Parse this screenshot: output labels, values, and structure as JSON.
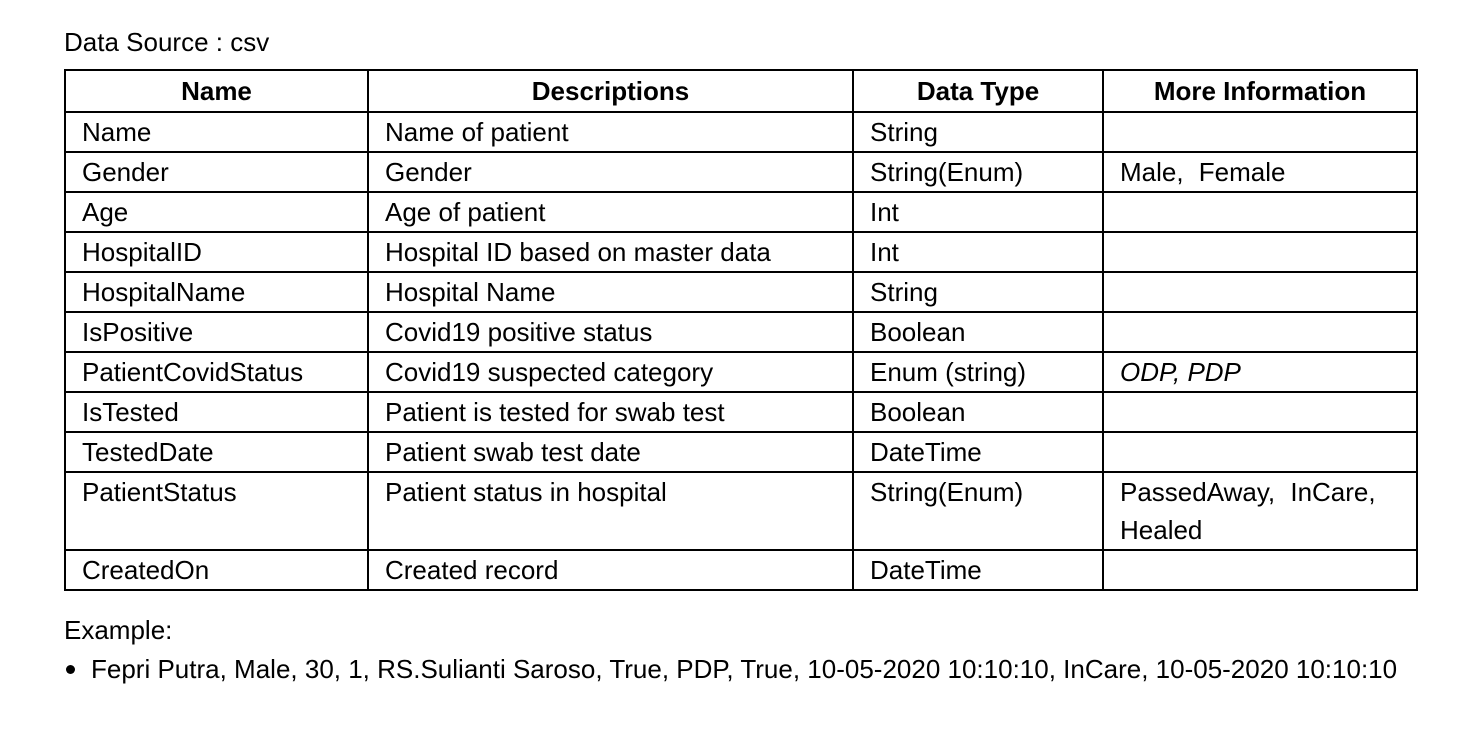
{
  "data_source": "Data Source : csv",
  "table": {
    "headers": [
      "Name",
      "Descriptions",
      "Data Type",
      "More Information"
    ],
    "rows": [
      {
        "name": "Name",
        "description": "Name of patient",
        "type": "String",
        "more": ""
      },
      {
        "name": "Gender",
        "description": "Gender",
        "type": "String(Enum)",
        "more": "Male, Female"
      },
      {
        "name": "Age",
        "description": "Age of patient",
        "type": "Int",
        "more": ""
      },
      {
        "name": "HospitalID",
        "description": "Hospital ID based on master data",
        "type": "Int",
        "more": ""
      },
      {
        "name": "HospitalName",
        "description": "Hospital Name",
        "type": "String",
        "more": ""
      },
      {
        "name": "IsPositive",
        "description": "Covid19 positive status",
        "type": "Boolean",
        "more": ""
      },
      {
        "name": "PatientCovidStatus",
        "description": "Covid19 suspected category",
        "type": "Enum (string)",
        "more": "ODP, PDP"
      },
      {
        "name": "IsTested",
        "description": "Patient is tested for swab test",
        "type": "Boolean",
        "more": ""
      },
      {
        "name": "TestedDate",
        "description": "Patient swab test date",
        "type": "DateTime",
        "more": ""
      },
      {
        "name": "PatientStatus",
        "description": "Patient status in hospital",
        "type": "String(Enum)",
        "more": "PassedAway, InCare, Healed"
      },
      {
        "name": "CreatedOn",
        "description": "Created record",
        "type": "DateTime",
        "more": ""
      }
    ]
  },
  "example": {
    "label": "Example:",
    "items": [
      "Fepri Putra, Male, 30, 1, RS.Sulianti Saroso, True, PDP, True, 10-05-2020 10:10:10, InCare, 10-05-2020 10:10:10"
    ]
  }
}
